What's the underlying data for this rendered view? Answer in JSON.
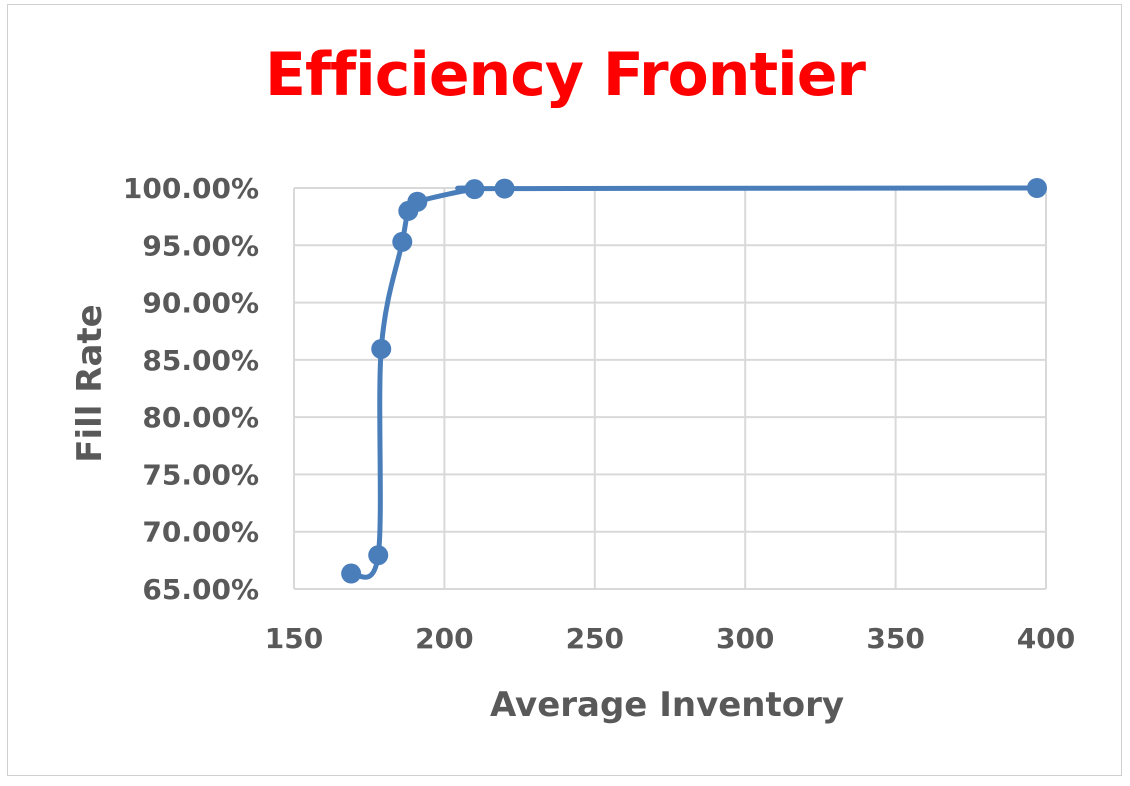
{
  "chart_data": {
    "type": "scatter",
    "title": "Efficiency Frontier",
    "xlabel": "Average Inventory",
    "ylabel": "Fill Rate",
    "xlim": [
      150,
      400
    ],
    "ylim": [
      0.65,
      1.0
    ],
    "x_ticks": [
      "150",
      "200",
      "250",
      "300",
      "350",
      "400"
    ],
    "y_ticks": [
      "65.00%",
      "70.00%",
      "75.00%",
      "80.00%",
      "85.00%",
      "90.00%",
      "95.00%",
      "100.00%"
    ],
    "grid": true,
    "smoothed_line": true,
    "series": [
      {
        "color": "#4a7ebb",
        "points": [
          {
            "x": 169,
            "y": 0.6635
          },
          {
            "x": 178,
            "y": 0.6795
          },
          {
            "x": 179,
            "y": 0.8595
          },
          {
            "x": 186,
            "y": 0.953
          },
          {
            "x": 188,
            "y": 0.98
          },
          {
            "x": 191,
            "y": 0.988
          },
          {
            "x": 210,
            "y": 0.999
          },
          {
            "x": 220,
            "y": 0.9995
          },
          {
            "x": 397,
            "y": 1.0
          }
        ]
      }
    ]
  }
}
